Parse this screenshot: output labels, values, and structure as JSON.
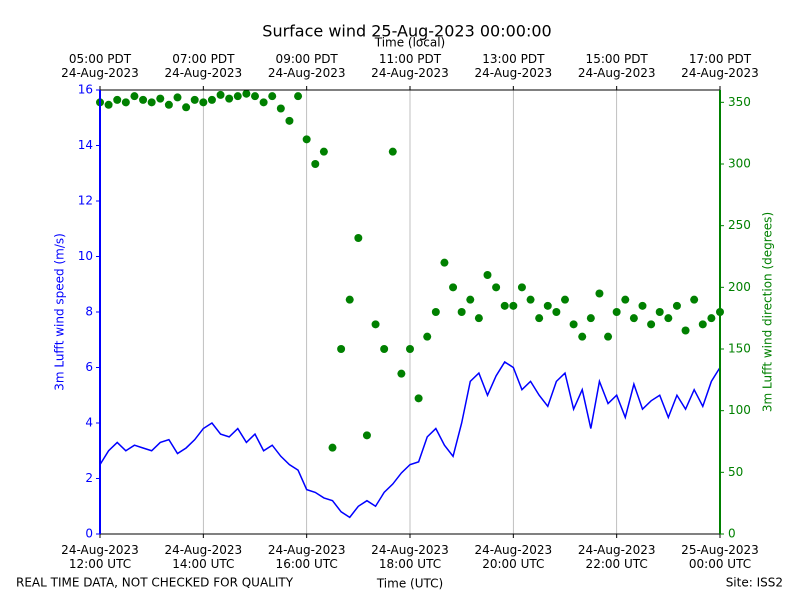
{
  "chart_data": {
    "type": "line",
    "title": "Surface wind 25-Aug-2023 00:00:00",
    "xlabel": "Time (UTC)",
    "x2label": "Time (local)",
    "ylabel": "3m Lufft wind speed (m/s)",
    "y2label": "3m Lufft wind direction (degrees)",
    "footer_left": "REAL TIME DATA, NOT CHECKED FOR QUALITY",
    "footer_right": "Site: ISS2",
    "grid": "x",
    "xlim": [
      "2023-08-24T12:00",
      "2023-08-25T00:00"
    ],
    "xticks": [
      {
        "value": "2023-08-24T12:00",
        "label": "24-Aug-2023\n12:00 UTC"
      },
      {
        "value": "2023-08-24T14:00",
        "label": "24-Aug-2023\n14:00 UTC"
      },
      {
        "value": "2023-08-24T16:00",
        "label": "24-Aug-2023\n16:00 UTC"
      },
      {
        "value": "2023-08-24T18:00",
        "label": "24-Aug-2023\n18:00 UTC"
      },
      {
        "value": "2023-08-24T20:00",
        "label": "24-Aug-2023\n20:00 UTC"
      },
      {
        "value": "2023-08-24T22:00",
        "label": "24-Aug-2023\n22:00 UTC"
      },
      {
        "value": "2023-08-25T00:00",
        "label": "25-Aug-2023\n00:00 UTC"
      }
    ],
    "x2ticks": [
      {
        "value": "2023-08-24T12:00",
        "label": "05:00 PDT\n24-Aug-2023"
      },
      {
        "value": "2023-08-24T14:00",
        "label": "07:00 PDT\n24-Aug-2023"
      },
      {
        "value": "2023-08-24T16:00",
        "label": "09:00 PDT\n24-Aug-2023"
      },
      {
        "value": "2023-08-24T18:00",
        "label": "11:00 PDT\n24-Aug-2023"
      },
      {
        "value": "2023-08-24T20:00",
        "label": "13:00 PDT\n24-Aug-2023"
      },
      {
        "value": "2023-08-24T22:00",
        "label": "15:00 PDT\n24-Aug-2023"
      },
      {
        "value": "2023-08-25T00:00",
        "label": "17:00 PDT\n24-Aug-2023"
      }
    ],
    "ylim": [
      0,
      16
    ],
    "yticks": [
      0,
      2,
      4,
      6,
      8,
      10,
      12,
      14,
      16
    ],
    "y2lim": [
      0,
      360
    ],
    "y2ticks": [
      0,
      50,
      100,
      150,
      200,
      250,
      300,
      350
    ],
    "x": [
      "2023-08-24T12:00",
      "2023-08-24T12:10",
      "2023-08-24T12:20",
      "2023-08-24T12:30",
      "2023-08-24T12:40",
      "2023-08-24T12:50",
      "2023-08-24T13:00",
      "2023-08-24T13:10",
      "2023-08-24T13:20",
      "2023-08-24T13:30",
      "2023-08-24T13:40",
      "2023-08-24T13:50",
      "2023-08-24T14:00",
      "2023-08-24T14:10",
      "2023-08-24T14:20",
      "2023-08-24T14:30",
      "2023-08-24T14:40",
      "2023-08-24T14:50",
      "2023-08-24T15:00",
      "2023-08-24T15:10",
      "2023-08-24T15:20",
      "2023-08-24T15:30",
      "2023-08-24T15:40",
      "2023-08-24T15:50",
      "2023-08-24T16:00",
      "2023-08-24T16:10",
      "2023-08-24T16:20",
      "2023-08-24T16:30",
      "2023-08-24T16:40",
      "2023-08-24T16:50",
      "2023-08-24T17:00",
      "2023-08-24T17:10",
      "2023-08-24T17:20",
      "2023-08-24T17:30",
      "2023-08-24T17:40",
      "2023-08-24T17:50",
      "2023-08-24T18:00",
      "2023-08-24T18:10",
      "2023-08-24T18:20",
      "2023-08-24T18:30",
      "2023-08-24T18:40",
      "2023-08-24T18:50",
      "2023-08-24T19:00",
      "2023-08-24T19:10",
      "2023-08-24T19:20",
      "2023-08-24T19:30",
      "2023-08-24T19:40",
      "2023-08-24T19:50",
      "2023-08-24T20:00",
      "2023-08-24T20:10",
      "2023-08-24T20:20",
      "2023-08-24T20:30",
      "2023-08-24T20:40",
      "2023-08-24T20:50",
      "2023-08-24T21:00",
      "2023-08-24T21:10",
      "2023-08-24T21:20",
      "2023-08-24T21:30",
      "2023-08-24T21:40",
      "2023-08-24T21:50",
      "2023-08-24T22:00",
      "2023-08-24T22:10",
      "2023-08-24T22:20",
      "2023-08-24T22:30",
      "2023-08-24T22:40",
      "2023-08-24T22:50",
      "2023-08-24T23:00",
      "2023-08-24T23:10",
      "2023-08-24T23:20",
      "2023-08-24T23:30",
      "2023-08-24T23:40",
      "2023-08-24T23:50",
      "2023-08-25T00:00"
    ],
    "series": [
      {
        "type": "line",
        "color": "#0000ff",
        "values": [
          2.5,
          3.0,
          3.3,
          3.0,
          3.2,
          3.1,
          3.0,
          3.3,
          3.4,
          2.9,
          3.1,
          3.4,
          3.8,
          4.0,
          3.6,
          3.5,
          3.8,
          3.3,
          3.6,
          3.0,
          3.2,
          2.8,
          2.5,
          2.3,
          1.6,
          1.5,
          1.3,
          1.2,
          0.8,
          0.6,
          1.0,
          1.2,
          1.0,
          1.5,
          1.8,
          2.2,
          2.5,
          2.6,
          3.5,
          3.8,
          3.2,
          2.8,
          4.0,
          5.5,
          5.8,
          5.0,
          5.7,
          6.2,
          6.0,
          5.2,
          5.5,
          5.0,
          4.6,
          5.5,
          5.8,
          4.5,
          5.2,
          3.8,
          5.5,
          4.7,
          5.0,
          4.2,
          5.4,
          4.5,
          4.8,
          5.0,
          4.2,
          5.0,
          4.5,
          5.2,
          4.6,
          5.5,
          6.0
        ]
      },
      {
        "type": "scatter",
        "axis": "y2",
        "color": "#008000",
        "values": [
          350,
          348,
          352,
          350,
          355,
          352,
          350,
          353,
          348,
          354,
          346,
          352,
          350,
          352,
          356,
          353,
          355,
          357,
          355,
          350,
          355,
          345,
          335,
          355,
          320,
          300,
          310,
          70,
          150,
          190,
          240,
          80,
          170,
          150,
          310,
          130,
          150,
          110,
          160,
          180,
          220,
          200,
          180,
          190,
          175,
          210,
          200,
          185,
          185,
          200,
          190,
          175,
          185,
          180,
          190,
          170,
          160,
          175,
          195,
          160,
          180,
          190,
          175,
          185,
          170,
          180,
          175,
          185,
          165,
          190,
          170,
          175,
          180
        ]
      }
    ]
  }
}
